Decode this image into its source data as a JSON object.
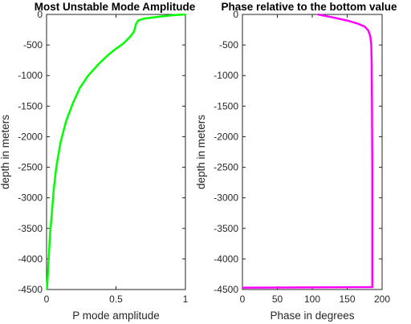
{
  "chart_data": [
    {
      "type": "line",
      "title": "Most Unstable Mode Amplitude",
      "xlabel": "P mode amplitude",
      "ylabel": "depth in meters",
      "xlim": [
        0,
        1
      ],
      "ylim": [
        -4500,
        0
      ],
      "xticks": [
        "0",
        "0.5",
        "1"
      ],
      "xtick_values": [
        0,
        0.5,
        1
      ],
      "yticks": [
        "0",
        "-500",
        "-1000",
        "-1500",
        "-2000",
        "-2500",
        "-3000",
        "-3500",
        "-4000",
        "-4500"
      ],
      "ytick_values": [
        0,
        -500,
        -1000,
        -1500,
        -2000,
        -2500,
        -3000,
        -3500,
        -4000,
        -4500
      ],
      "grid": false,
      "color": "#00ff00",
      "series": [
        {
          "x": [
            1.0,
            0.92,
            0.8,
            0.7,
            0.66,
            0.645,
            0.63,
            0.6,
            0.55,
            0.5,
            0.45,
            0.38,
            0.3,
            0.24,
            0.19,
            0.14,
            0.1,
            0.07,
            0.05,
            0.04,
            0.025,
            0.015,
            0.008,
            0.003
          ],
          "y": [
            0,
            -10,
            -40,
            -70,
            -100,
            -150,
            -280,
            -370,
            -480,
            -560,
            -650,
            -800,
            -1000,
            -1200,
            -1450,
            -1750,
            -2100,
            -2500,
            -2900,
            -3200,
            -3600,
            -4000,
            -4300,
            -4500
          ]
        }
      ]
    },
    {
      "type": "line",
      "title": "Phase relative to the bottom value",
      "xlabel": "Phase in degrees",
      "ylabel": "depth in meters",
      "xlim": [
        0,
        200
      ],
      "ylim": [
        -4500,
        0
      ],
      "xticks": [
        "0",
        "50",
        "100",
        "150",
        "200"
      ],
      "xtick_values": [
        0,
        50,
        100,
        150,
        200
      ],
      "yticks": [
        "0",
        "-500",
        "-1000",
        "-1500",
        "-2000",
        "-2500",
        "-3000",
        "-3500",
        "-4000",
        "-4500"
      ],
      "ytick_values": [
        0,
        -500,
        -1000,
        -1500,
        -2000,
        -2500,
        -3000,
        -3500,
        -4000,
        -4500
      ],
      "grid": false,
      "color": "#ff00ff",
      "series": [
        {
          "x": [
            108,
            130,
            150,
            165,
            175,
            180,
            183,
            184.5,
            185,
            185.5,
            186,
            186,
            186,
            186,
            186,
            0
          ],
          "y": [
            0,
            -50,
            -100,
            -150,
            -200,
            -260,
            -350,
            -500,
            -800,
            -1500,
            -2500,
            -3500,
            -4200,
            -4450,
            -4460,
            -4470
          ]
        }
      ]
    }
  ]
}
